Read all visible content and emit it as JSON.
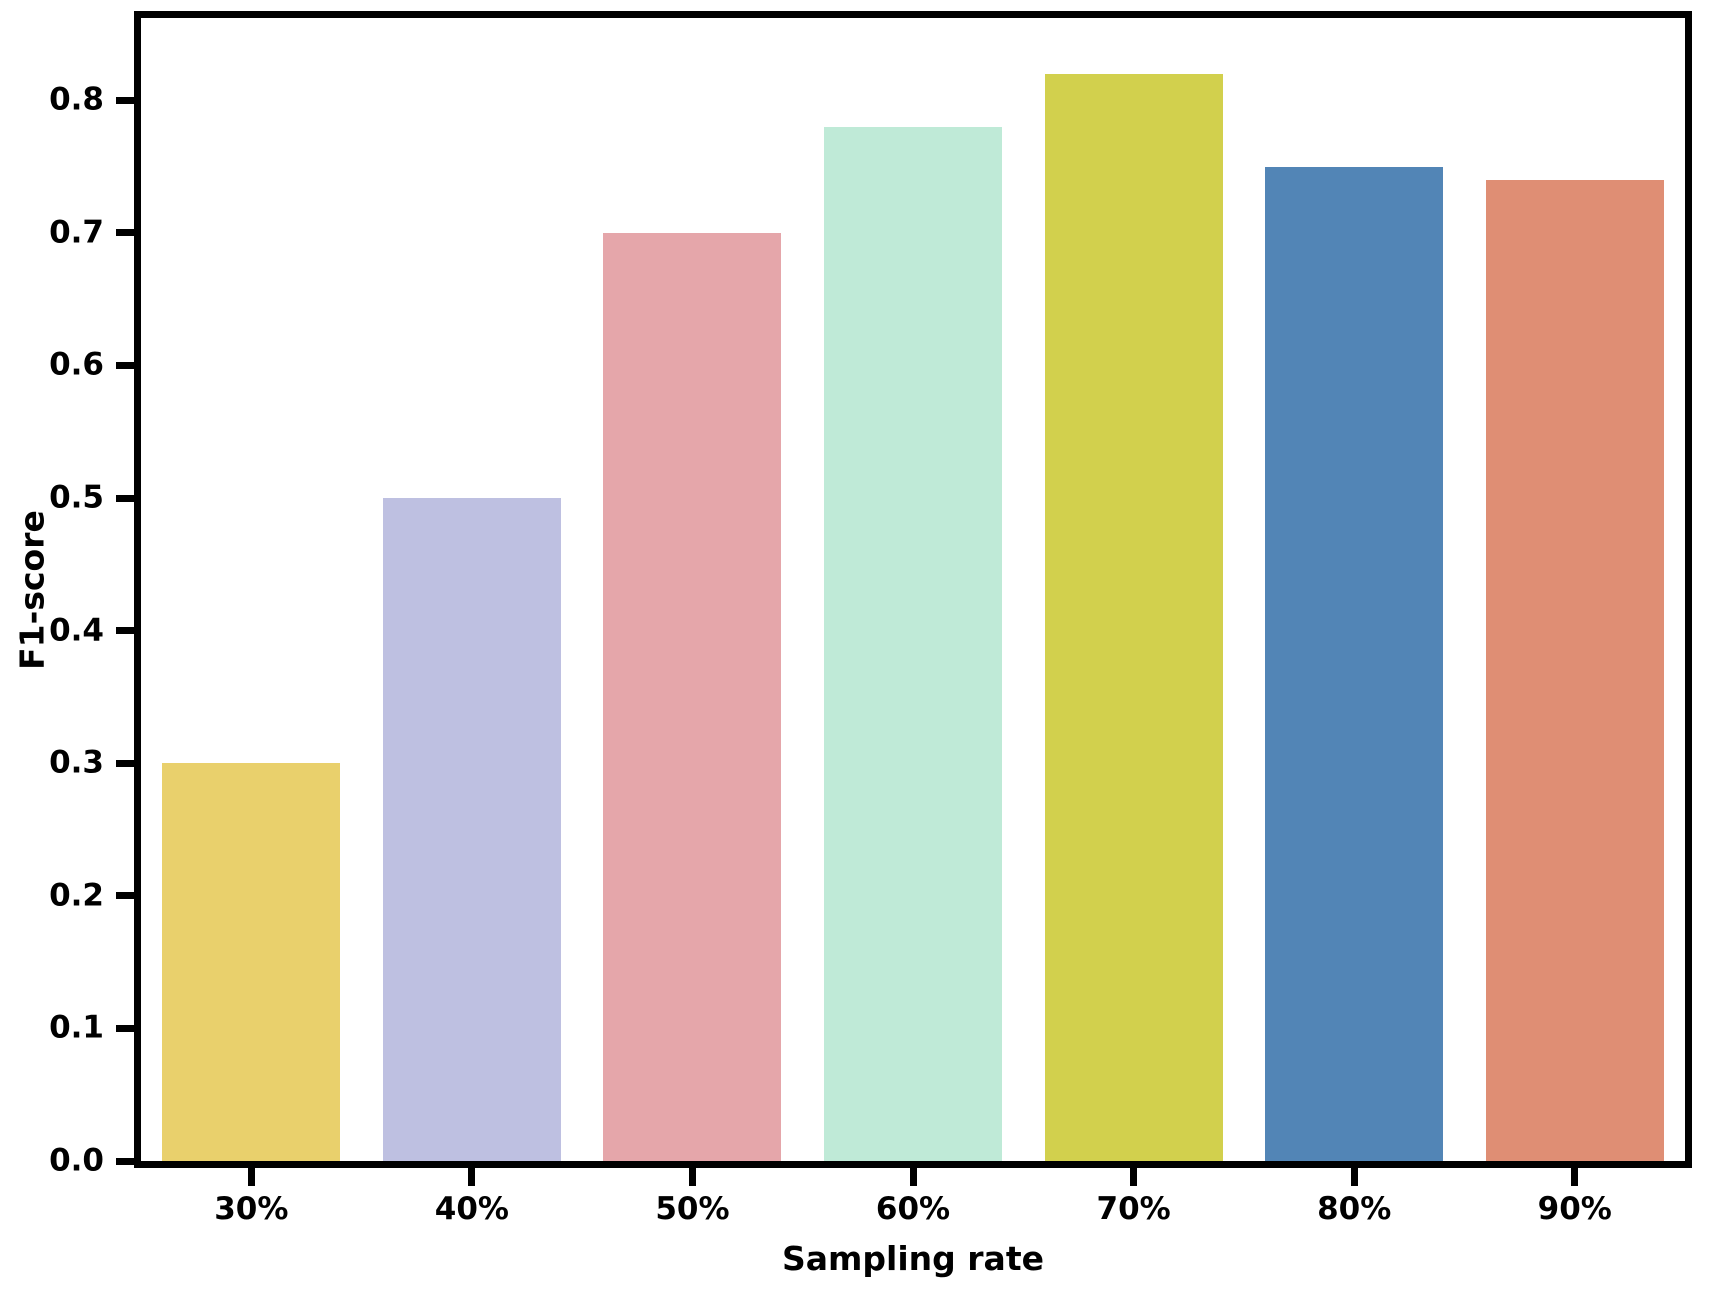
{
  "chart_data": {
    "type": "bar",
    "title": "",
    "xlabel": "Sampling rate",
    "ylabel": "F1-score",
    "categories": [
      "30%",
      "40%",
      "50%",
      "60%",
      "70%",
      "80%",
      "90%"
    ],
    "values": [
      0.3,
      0.5,
      0.7,
      0.78,
      0.82,
      0.75,
      0.74
    ],
    "bar_colors": [
      "#e9d06c",
      "#bec0e1",
      "#e5a6aa",
      "#bfead7",
      "#d2d04d",
      "#5285b6",
      "#df8e74"
    ],
    "ytick_labels": [
      "0.0",
      "0.1",
      "0.2",
      "0.3",
      "0.4",
      "0.5",
      "0.6",
      "0.7",
      "0.8"
    ],
    "yticks": [
      0.0,
      0.1,
      0.2,
      0.3,
      0.4,
      0.5,
      0.6,
      0.7,
      0.8
    ],
    "ylim": [
      0,
      0.862
    ],
    "grid": false,
    "legend": false,
    "axis_color": "#000000",
    "text_color": "#000000",
    "background_color": "#ffffff"
  }
}
